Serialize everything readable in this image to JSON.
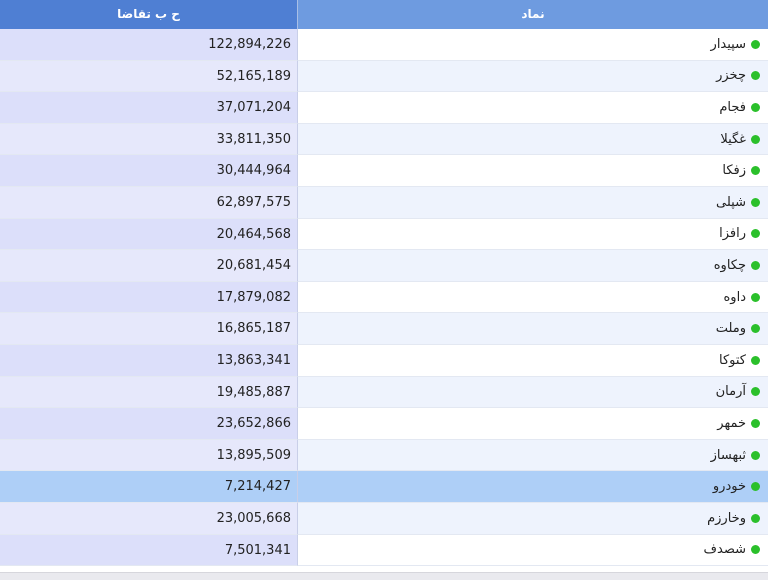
{
  "header": {
    "value_col": "ح ب تقاضا",
    "symbol_col": "نماد"
  },
  "rows": [
    {
      "symbol": "سپیدار",
      "value": "122,894,226",
      "status": "green"
    },
    {
      "symbol": "چخزر",
      "value": "52,165,189",
      "status": "green"
    },
    {
      "symbol": "فجام",
      "value": "37,071,204",
      "status": "green"
    },
    {
      "symbol": "غگیلا",
      "value": "33,811,350",
      "status": "green"
    },
    {
      "symbol": "زفکا",
      "value": "30,444,964",
      "status": "green"
    },
    {
      "symbol": "شپلی",
      "value": "62,897,575",
      "status": "green"
    },
    {
      "symbol": "رافزا",
      "value": "20,464,568",
      "status": "green"
    },
    {
      "symbol": "چکاوه",
      "value": "20,681,454",
      "status": "green"
    },
    {
      "symbol": "داوه",
      "value": "17,879,082",
      "status": "green"
    },
    {
      "symbol": "وملت",
      "value": "16,865,187",
      "status": "green"
    },
    {
      "symbol": "کتوکا",
      "value": "13,863,341",
      "status": "green"
    },
    {
      "symbol": "آرمان",
      "value": "19,485,887",
      "status": "green"
    },
    {
      "symbol": "خمهر",
      "value": "23,652,866",
      "status": "green"
    },
    {
      "symbol": "ثبهساز",
      "value": "13,895,509",
      "status": "green"
    },
    {
      "symbol": "خودرو",
      "value": "7,214,427",
      "status": "green",
      "selected": true
    },
    {
      "symbol": "وخارزم",
      "value": "23,005,668",
      "status": "green"
    },
    {
      "symbol": "شصدف",
      "value": "7,501,341",
      "status": "green"
    }
  ],
  "colors": {
    "header_value_bg": "#4f7fd3",
    "header_symbol_bg": "#6e9be0",
    "status_green": "#2bc02b",
    "selected_row_bg": "#aecff7"
  }
}
